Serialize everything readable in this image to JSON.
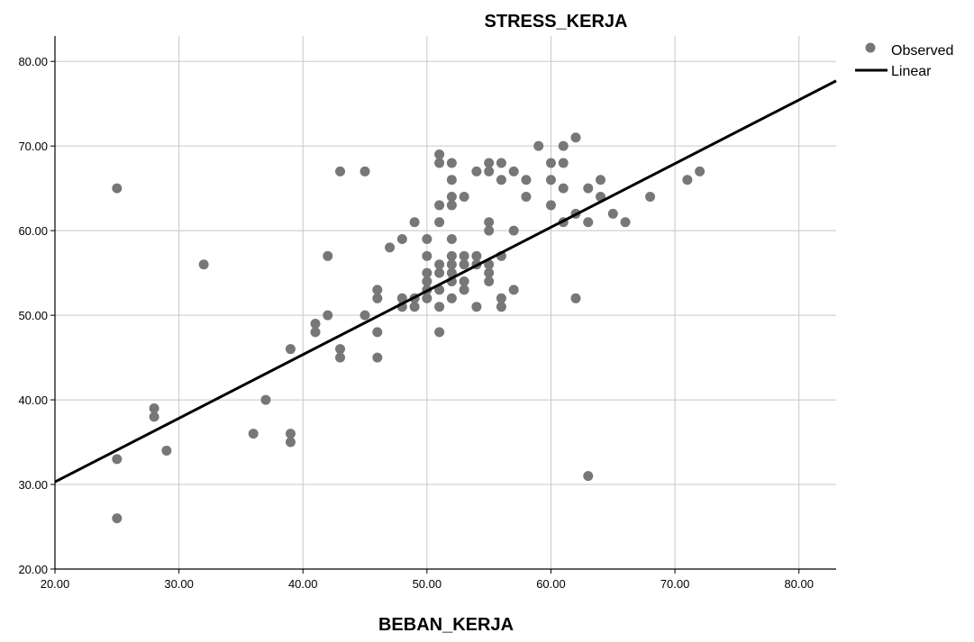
{
  "chart_data": {
    "type": "scatter",
    "title": "STRESS_KERJA",
    "xlabel": "BEBAN_KERJA",
    "ylabel": "",
    "xlim": [
      20,
      83
    ],
    "ylim": [
      20,
      83
    ],
    "xticks": [
      "20.00",
      "30.00",
      "40.00",
      "50.00",
      "60.00",
      "70.00",
      "80.00"
    ],
    "yticks": [
      "20.00",
      "30.00",
      "40.00",
      "50.00",
      "60.00",
      "70.00",
      "80.00"
    ],
    "grid": true,
    "legend_position": "top-right",
    "legend": [
      "Observed",
      "Linear"
    ],
    "series": [
      {
        "name": "Observed",
        "kind": "scatter",
        "color": "#777777",
        "points": [
          [
            25,
            65
          ],
          [
            25,
            33
          ],
          [
            25,
            26
          ],
          [
            28,
            39
          ],
          [
            28,
            38
          ],
          [
            29,
            34
          ],
          [
            32,
            56
          ],
          [
            36,
            36
          ],
          [
            37,
            40
          ],
          [
            39,
            46
          ],
          [
            39,
            36
          ],
          [
            39,
            35
          ],
          [
            41,
            49
          ],
          [
            41,
            48
          ],
          [
            42,
            57
          ],
          [
            42,
            50
          ],
          [
            43,
            67
          ],
          [
            43,
            46
          ],
          [
            43,
            45
          ],
          [
            45,
            67
          ],
          [
            45,
            50
          ],
          [
            46,
            53
          ],
          [
            46,
            52
          ],
          [
            46,
            48
          ],
          [
            46,
            45
          ],
          [
            47,
            58
          ],
          [
            48,
            59
          ],
          [
            48,
            52
          ],
          [
            48,
            51
          ],
          [
            49,
            61
          ],
          [
            49,
            52
          ],
          [
            49,
            51
          ],
          [
            50,
            59
          ],
          [
            50,
            57
          ],
          [
            50,
            55
          ],
          [
            50,
            54
          ],
          [
            50,
            53
          ],
          [
            50,
            52
          ],
          [
            51,
            69
          ],
          [
            51,
            68
          ],
          [
            51,
            63
          ],
          [
            51,
            61
          ],
          [
            51,
            56
          ],
          [
            51,
            55
          ],
          [
            51,
            53
          ],
          [
            51,
            51
          ],
          [
            51,
            48
          ],
          [
            52,
            68
          ],
          [
            52,
            66
          ],
          [
            52,
            64
          ],
          [
            52,
            63
          ],
          [
            52,
            59
          ],
          [
            52,
            57
          ],
          [
            52,
            56
          ],
          [
            52,
            55
          ],
          [
            52,
            54
          ],
          [
            52,
            52
          ],
          [
            53,
            64
          ],
          [
            53,
            57
          ],
          [
            53,
            56
          ],
          [
            53,
            54
          ],
          [
            53,
            53
          ],
          [
            54,
            67
          ],
          [
            54,
            57
          ],
          [
            54,
            56
          ],
          [
            54,
            51
          ],
          [
            55,
            68
          ],
          [
            55,
            67
          ],
          [
            55,
            61
          ],
          [
            55,
            60
          ],
          [
            55,
            56
          ],
          [
            55,
            55
          ],
          [
            55,
            54
          ],
          [
            56,
            68
          ],
          [
            56,
            66
          ],
          [
            56,
            57
          ],
          [
            56,
            52
          ],
          [
            56,
            51
          ],
          [
            57,
            67
          ],
          [
            57,
            60
          ],
          [
            57,
            53
          ],
          [
            58,
            66
          ],
          [
            58,
            64
          ],
          [
            59,
            70
          ],
          [
            60,
            68
          ],
          [
            60,
            66
          ],
          [
            60,
            63
          ],
          [
            61,
            70
          ],
          [
            61,
            68
          ],
          [
            61,
            65
          ],
          [
            61,
            61
          ],
          [
            62,
            71
          ],
          [
            62,
            62
          ],
          [
            62,
            52
          ],
          [
            63,
            65
          ],
          [
            63,
            61
          ],
          [
            63,
            31
          ],
          [
            64,
            66
          ],
          [
            64,
            64
          ],
          [
            65,
            62
          ],
          [
            66,
            61
          ],
          [
            68,
            64
          ],
          [
            71,
            66
          ],
          [
            72,
            67
          ]
        ]
      },
      {
        "name": "Linear",
        "kind": "line",
        "color": "#000000",
        "intercept": 15.25,
        "slope": 0.7525
      }
    ]
  }
}
